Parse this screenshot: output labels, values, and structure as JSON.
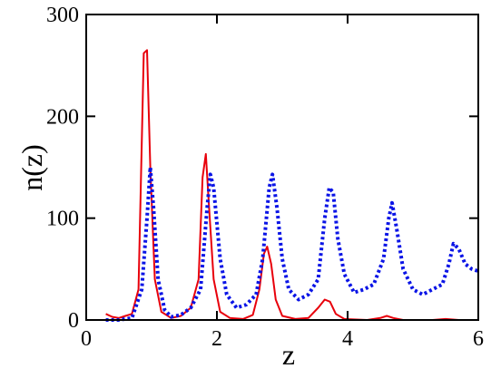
{
  "chart_data": {
    "type": "line",
    "x_label": "z",
    "y_label": "n(z)",
    "xlim": [
      0,
      6
    ],
    "xticks": [
      0,
      2,
      4,
      6
    ],
    "ylim": [
      0,
      300
    ],
    "yticks": [
      0,
      100,
      200,
      300
    ],
    "series": [
      {
        "color": "#e8000b",
        "style": "solid",
        "x": [
          0.3,
          0.4,
          0.5,
          0.6,
          0.7,
          0.8,
          0.88,
          0.93,
          0.98,
          1.05,
          1.15,
          1.3,
          1.45,
          1.6,
          1.72,
          1.78,
          1.83,
          1.88,
          1.95,
          2.05,
          2.2,
          2.4,
          2.55,
          2.65,
          2.72,
          2.77,
          2.83,
          2.9,
          3.0,
          3.2,
          3.4,
          3.55,
          3.65,
          3.73,
          3.82,
          3.95,
          4.3,
          4.5,
          4.6,
          4.7,
          4.85,
          5.3,
          5.5,
          5.7,
          6.0
        ],
        "values": [
          6,
          3,
          2,
          4,
          6,
          30,
          262,
          265,
          150,
          40,
          8,
          2,
          4,
          12,
          40,
          140,
          163,
          110,
          40,
          8,
          2,
          1,
          5,
          30,
          65,
          72,
          55,
          20,
          4,
          1,
          2,
          12,
          20,
          18,
          6,
          1,
          0,
          2,
          4,
          2,
          0,
          0,
          1,
          0,
          0
        ]
      },
      {
        "color": "#0a14e6",
        "style": "dotted",
        "x": [
          0.3,
          0.5,
          0.7,
          0.85,
          0.93,
          0.98,
          1.03,
          1.1,
          1.2,
          1.3,
          1.45,
          1.6,
          1.75,
          1.85,
          1.9,
          1.95,
          2.05,
          2.15,
          2.3,
          2.45,
          2.6,
          2.7,
          2.8,
          2.85,
          2.92,
          3.0,
          3.1,
          3.25,
          3.4,
          3.55,
          3.65,
          3.72,
          3.78,
          3.85,
          3.95,
          4.1,
          4.25,
          4.4,
          4.55,
          4.63,
          4.68,
          4.75,
          4.85,
          5.0,
          5.15,
          5.3,
          5.45,
          5.55,
          5.62,
          5.7,
          5.8,
          5.9,
          6.0
        ],
        "values": [
          0,
          0,
          2,
          30,
          100,
          150,
          110,
          40,
          10,
          3,
          5,
          12,
          30,
          110,
          143,
          130,
          60,
          25,
          12,
          15,
          25,
          60,
          130,
          143,
          110,
          60,
          30,
          20,
          25,
          40,
          100,
          130,
          125,
          80,
          45,
          27,
          30,
          35,
          60,
          100,
          115,
          90,
          50,
          30,
          25,
          30,
          35,
          55,
          75,
          70,
          55,
          50,
          48
        ]
      }
    ]
  }
}
